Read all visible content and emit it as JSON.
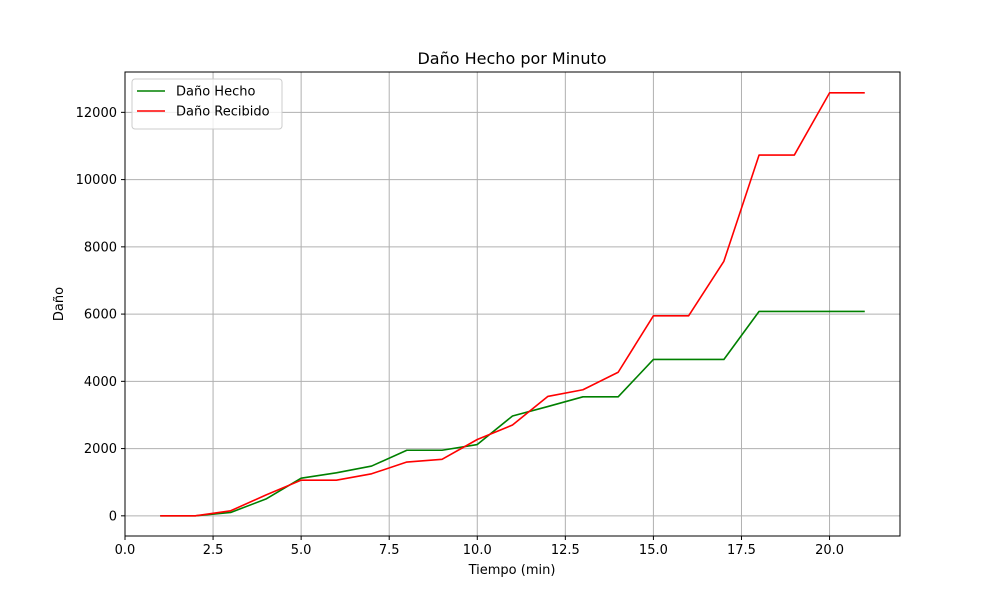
{
  "chart_data": {
    "type": "line",
    "title": "Daño Hecho por Minuto",
    "xlabel": "Tiempo (min)",
    "ylabel": "Daño",
    "xlim": [
      0,
      22
    ],
    "ylim": [
      -600,
      13200
    ],
    "xticks": [
      0.0,
      2.5,
      5.0,
      7.5,
      10.0,
      12.5,
      15.0,
      17.5,
      20.0
    ],
    "xtick_labels": [
      "0.0",
      "2.5",
      "5.0",
      "7.5",
      "10.0",
      "12.5",
      "15.0",
      "17.5",
      "20.0"
    ],
    "yticks": [
      0,
      2000,
      4000,
      6000,
      8000,
      10000,
      12000
    ],
    "ytick_labels": [
      "0",
      "2000",
      "4000",
      "6000",
      "8000",
      "10000",
      "12000"
    ],
    "grid": true,
    "legend_position": "top-left",
    "x": [
      1,
      2,
      3,
      4,
      5,
      6,
      7,
      8,
      9,
      10,
      11,
      12,
      13,
      14,
      15,
      16,
      17,
      18,
      19,
      20,
      21
    ],
    "series": [
      {
        "name": "Daño Hecho",
        "color": "#008000",
        "values": [
          0,
          0,
          100,
          500,
          1120,
          1280,
          1480,
          1950,
          1950,
          2120,
          2970,
          3250,
          3540,
          3540,
          4650,
          4650,
          4650,
          6080,
          6080,
          6080,
          6080
        ]
      },
      {
        "name": "Daño Recibido",
        "color": "#ff0000",
        "values": [
          0,
          0,
          150,
          620,
          1060,
          1060,
          1250,
          1600,
          1680,
          2270,
          2700,
          3550,
          3750,
          4270,
          5950,
          5950,
          7570,
          10730,
          10730,
          12580,
          12580
        ]
      }
    ]
  }
}
